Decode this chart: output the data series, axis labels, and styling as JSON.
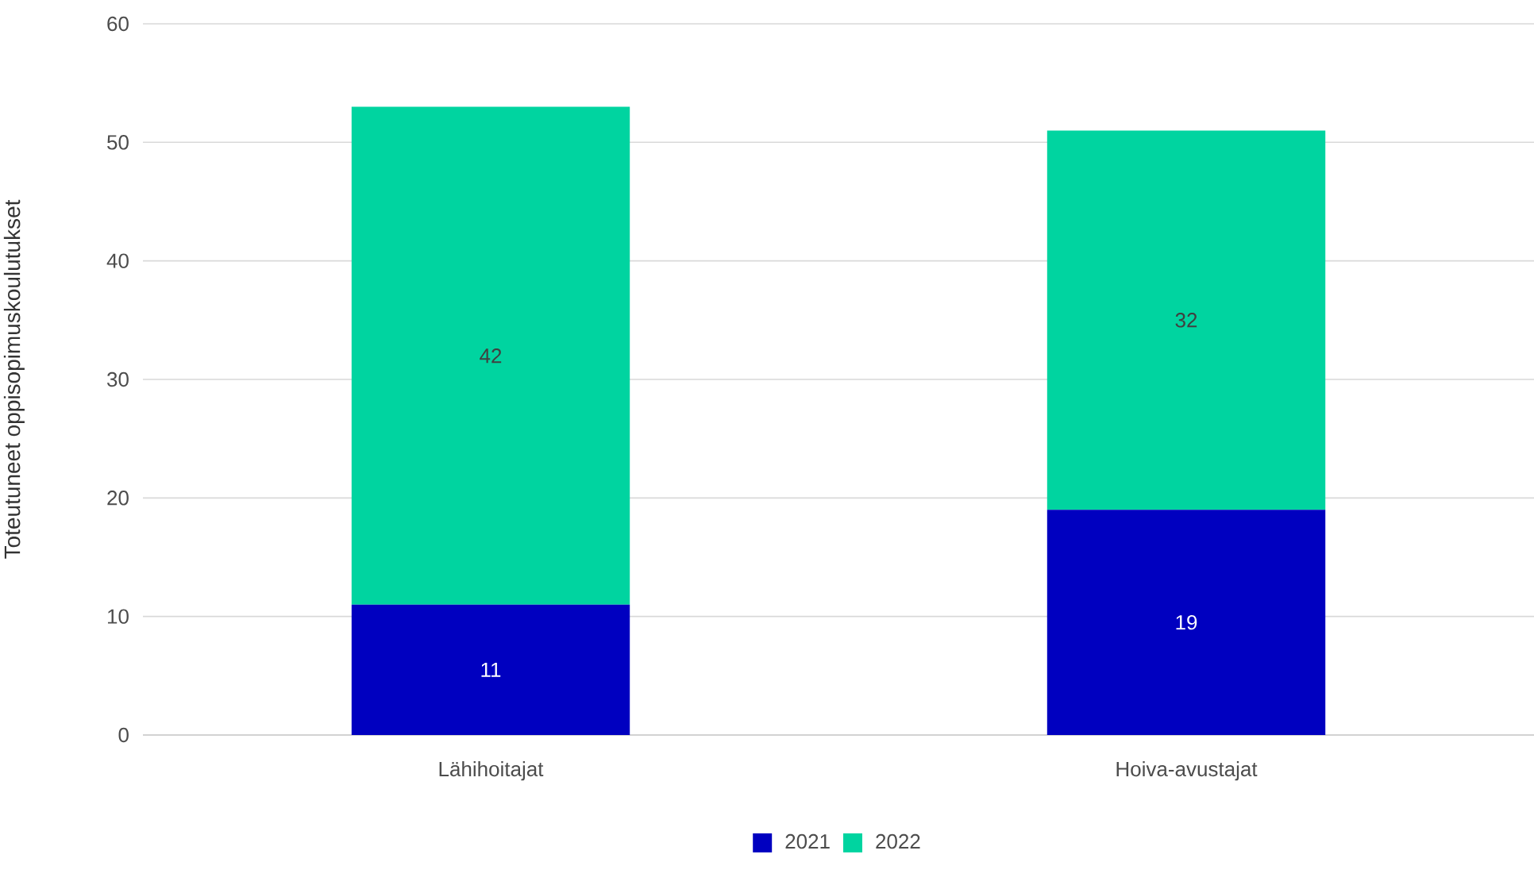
{
  "chart_data": {
    "type": "bar",
    "stacked": true,
    "ylabel": "Toteutuneet oppisopimuskoulutukset",
    "categories": [
      "Lähihoitajat",
      "Hoiva-avustajat"
    ],
    "series": [
      {
        "name": "2021",
        "color": "#0000c0",
        "values": [
          11,
          19
        ]
      },
      {
        "name": "2022",
        "color": "#00d4a0",
        "values": [
          42,
          32
        ]
      }
    ],
    "ylim": [
      0,
      60
    ],
    "yticks": [
      0,
      10,
      20,
      30,
      40,
      50,
      60
    ],
    "grid": "y",
    "legend": "bottom",
    "data_labels": true
  }
}
